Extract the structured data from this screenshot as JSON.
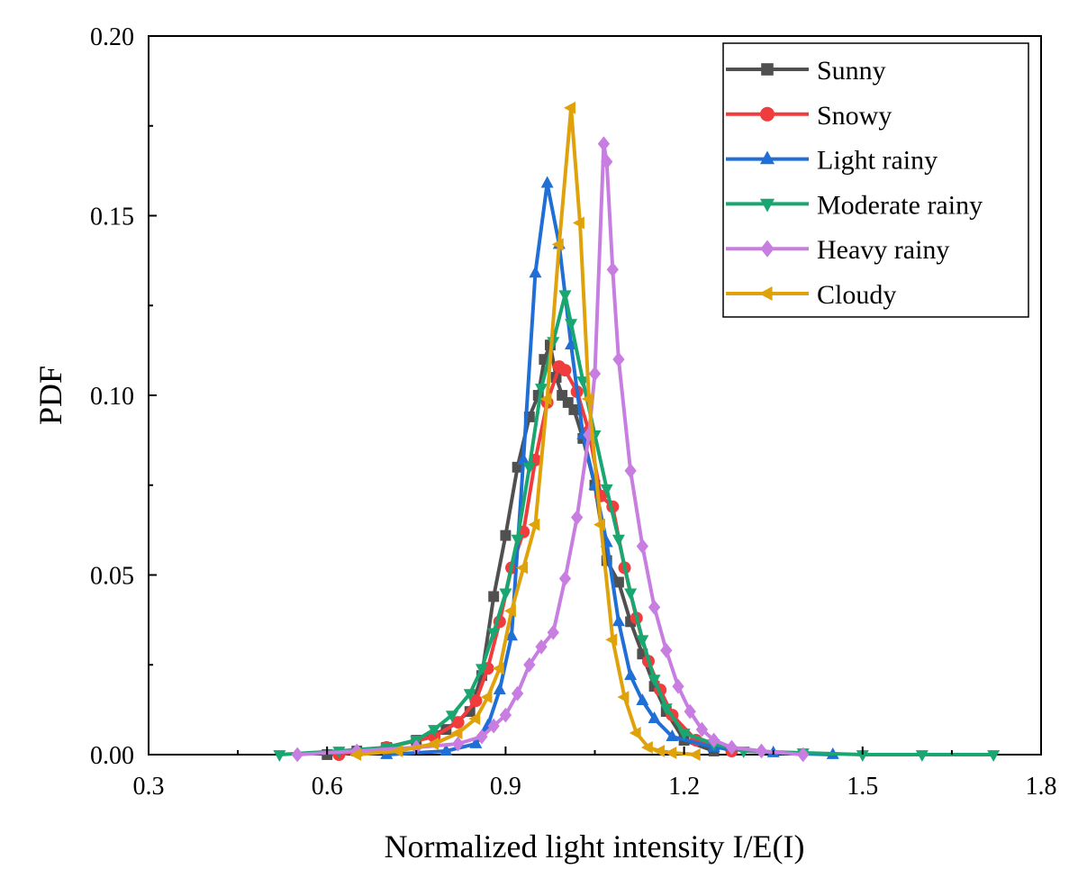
{
  "chart_data": {
    "type": "line",
    "title": "",
    "xlabel": "Normalized light intensity I/E(I)",
    "ylabel": "PDF",
    "xlim": [
      0.3,
      1.8
    ],
    "ylim": [
      0,
      0.2
    ],
    "xticks": [
      "0.3",
      "0.6",
      "0.9",
      "1.2",
      "1.5",
      "1.8"
    ],
    "yticks": [
      "0.00",
      "0.05",
      "0.10",
      "0.15",
      "0.20"
    ],
    "legend_position": "top-right",
    "series": [
      {
        "name": "Sunny",
        "color": "#505050",
        "marker": "square",
        "x": [
          0.6,
          0.65,
          0.7,
          0.75,
          0.8,
          0.84,
          0.86,
          0.88,
          0.9,
          0.92,
          0.94,
          0.955,
          0.965,
          0.975,
          0.985,
          0.995,
          1.005,
          1.015,
          1.03,
          1.05,
          1.07,
          1.09,
          1.11,
          1.13,
          1.15,
          1.17,
          1.2,
          1.25
        ],
        "y": [
          0.0,
          0.001,
          0.002,
          0.004,
          0.007,
          0.012,
          0.022,
          0.044,
          0.061,
          0.08,
          0.094,
          0.1,
          0.11,
          0.114,
          0.105,
          0.1,
          0.098,
          0.096,
          0.088,
          0.075,
          0.054,
          0.048,
          0.037,
          0.028,
          0.019,
          0.012,
          0.004,
          0.001
        ]
      },
      {
        "name": "Snowy",
        "color": "#f03c3c",
        "marker": "circle",
        "x": [
          0.62,
          0.7,
          0.78,
          0.82,
          0.85,
          0.87,
          0.89,
          0.91,
          0.93,
          0.95,
          0.97,
          0.99,
          1.0,
          1.02,
          1.04,
          1.06,
          1.08,
          1.1,
          1.12,
          1.14,
          1.16,
          1.18,
          1.22,
          1.28
        ],
        "y": [
          0.0,
          0.002,
          0.005,
          0.009,
          0.015,
          0.024,
          0.037,
          0.052,
          0.062,
          0.082,
          0.098,
          0.108,
          0.107,
          0.101,
          0.09,
          0.072,
          0.069,
          0.052,
          0.038,
          0.026,
          0.018,
          0.011,
          0.004,
          0.001
        ]
      },
      {
        "name": "Light rainy",
        "color": "#1f6fd6",
        "marker": "triangle-up",
        "x": [
          0.7,
          0.8,
          0.85,
          0.87,
          0.89,
          0.91,
          0.93,
          0.95,
          0.97,
          0.99,
          1.01,
          1.03,
          1.05,
          1.07,
          1.09,
          1.11,
          1.13,
          1.15,
          1.18,
          1.25,
          1.35,
          1.45
        ],
        "y": [
          0.0,
          0.001,
          0.003,
          0.008,
          0.018,
          0.033,
          0.082,
          0.134,
          0.159,
          0.142,
          0.114,
          0.089,
          0.075,
          0.059,
          0.037,
          0.022,
          0.015,
          0.01,
          0.005,
          0.002,
          0.0005,
          0.0
        ]
      },
      {
        "name": "Moderate rainy",
        "color": "#1aa670",
        "marker": "triangle-down",
        "x": [
          0.52,
          0.62,
          0.7,
          0.75,
          0.78,
          0.81,
          0.84,
          0.86,
          0.88,
          0.9,
          0.92,
          0.94,
          0.96,
          0.98,
          1.0,
          1.01,
          1.03,
          1.05,
          1.07,
          1.09,
          1.11,
          1.13,
          1.15,
          1.17,
          1.2,
          1.25,
          1.3,
          1.4,
          1.5,
          1.6,
          1.72
        ],
        "y": [
          0.0,
          0.001,
          0.002,
          0.004,
          0.007,
          0.011,
          0.017,
          0.024,
          0.034,
          0.045,
          0.06,
          0.08,
          0.102,
          0.115,
          0.128,
          0.12,
          0.104,
          0.089,
          0.074,
          0.06,
          0.045,
          0.032,
          0.021,
          0.013,
          0.006,
          0.003,
          0.001,
          0.0005,
          0.0,
          0.0,
          0.0
        ]
      },
      {
        "name": "Heavy rainy",
        "color": "#c77ee0",
        "marker": "diamond",
        "x": [
          0.55,
          0.65,
          0.75,
          0.82,
          0.86,
          0.88,
          0.9,
          0.92,
          0.94,
          0.96,
          0.98,
          1.0,
          1.02,
          1.04,
          1.05,
          1.065,
          1.07,
          1.08,
          1.09,
          1.11,
          1.13,
          1.15,
          1.17,
          1.19,
          1.21,
          1.23,
          1.25,
          1.28,
          1.33,
          1.4
        ],
        "y": [
          0.0,
          0.001,
          0.002,
          0.003,
          0.005,
          0.008,
          0.011,
          0.017,
          0.025,
          0.03,
          0.034,
          0.049,
          0.066,
          0.089,
          0.106,
          0.17,
          0.165,
          0.135,
          0.11,
          0.079,
          0.058,
          0.041,
          0.029,
          0.019,
          0.012,
          0.007,
          0.004,
          0.002,
          0.001,
          0.0
        ]
      },
      {
        "name": "Cloudy",
        "color": "#e0a20a",
        "marker": "triangle-left",
        "x": [
          0.65,
          0.72,
          0.78,
          0.82,
          0.85,
          0.87,
          0.89,
          0.91,
          0.93,
          0.95,
          0.97,
          0.99,
          1.01,
          1.025,
          1.04,
          1.06,
          1.08,
          1.1,
          1.12,
          1.14,
          1.16,
          1.18,
          1.22
        ],
        "y": [
          0.0,
          0.001,
          0.003,
          0.006,
          0.01,
          0.016,
          0.024,
          0.04,
          0.052,
          0.064,
          0.099,
          0.142,
          0.18,
          0.148,
          0.099,
          0.064,
          0.032,
          0.016,
          0.006,
          0.002,
          0.001,
          0.0005,
          0.0
        ]
      }
    ]
  }
}
